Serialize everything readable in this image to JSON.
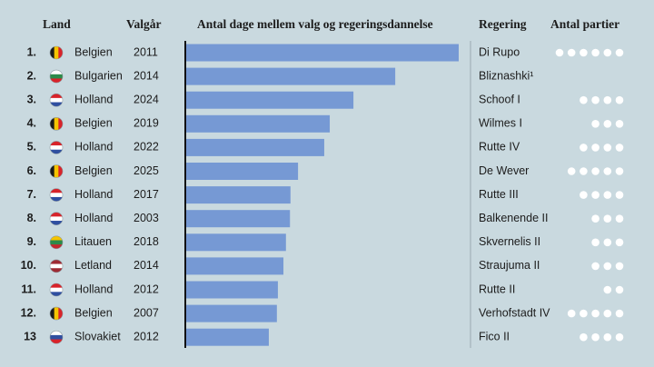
{
  "chart_data": {
    "type": "bar",
    "headers": {
      "country": "Land",
      "year": "Valgår",
      "value": "Antal dage mellem valg og regeringsdannelse",
      "government": "Regering",
      "parties": "Antal partier"
    },
    "ranks": [
      "1.",
      "2.",
      "3.",
      "4.",
      "5.",
      "6.",
      "7.",
      "8.",
      "9.",
      "10.",
      "11.",
      "12.",
      "13"
    ],
    "categories": [
      "Belgien",
      "Bulgarien",
      "Holland",
      "Belgien",
      "Holland",
      "Belgien",
      "Holland",
      "Holland",
      "Litauen",
      "Letland",
      "Holland",
      "Belgien",
      "Slovakiet"
    ],
    "years": [
      2011,
      2014,
      2024,
      2019,
      2022,
      2025,
      2017,
      2003,
      2018,
      2014,
      2012,
      2007,
      2012
    ],
    "governments": [
      "Di Rupo",
      "Bliznashki¹",
      "Schoof I",
      "Wilmes I",
      "Rutte IV",
      "De Wever",
      "Rutte III",
      "Balkenende II",
      "Skvernelis II",
      "Straujuma II",
      "Rutte II",
      "Verhofstadt IV",
      "Fico II"
    ],
    "values": [
      541,
      415,
      332,
      285,
      274,
      222,
      207,
      206,
      198,
      193,
      182,
      180,
      164
    ],
    "parties": [
      6,
      0,
      4,
      3,
      4,
      5,
      4,
      3,
      3,
      3,
      2,
      5,
      4
    ],
    "flags": [
      [
        "#1a1a1a",
        "#f5c400",
        "#d8232a"
      ],
      [
        "#ffffff",
        "#2c8a4a",
        "#d8232a"
      ],
      [
        "#d8232a",
        "#ffffff",
        "#2f4fa0"
      ],
      [
        "#1a1a1a",
        "#f5c400",
        "#d8232a"
      ],
      [
        "#d8232a",
        "#ffffff",
        "#2f4fa0"
      ],
      [
        "#1a1a1a",
        "#f5c400",
        "#d8232a"
      ],
      [
        "#d8232a",
        "#ffffff",
        "#2f4fa0"
      ],
      [
        "#d8232a",
        "#ffffff",
        "#2f4fa0"
      ],
      [
        "#f5c400",
        "#2c8a4a",
        "#c2272d"
      ],
      [
        "#9e2a33",
        "#ffffff",
        "#9e2a33"
      ],
      [
        "#d8232a",
        "#ffffff",
        "#2f4fa0"
      ],
      [
        "#1a1a1a",
        "#f5c400",
        "#d8232a"
      ],
      [
        "#ffffff",
        "#2f4fa0",
        "#d8232a"
      ]
    ],
    "flag_direction": [
      "v",
      "h",
      "h",
      "v",
      "h",
      "v",
      "h",
      "h",
      "h",
      "h",
      "h",
      "v",
      "h"
    ],
    "color": "#7699d4",
    "xlim": [
      0,
      541
    ]
  }
}
